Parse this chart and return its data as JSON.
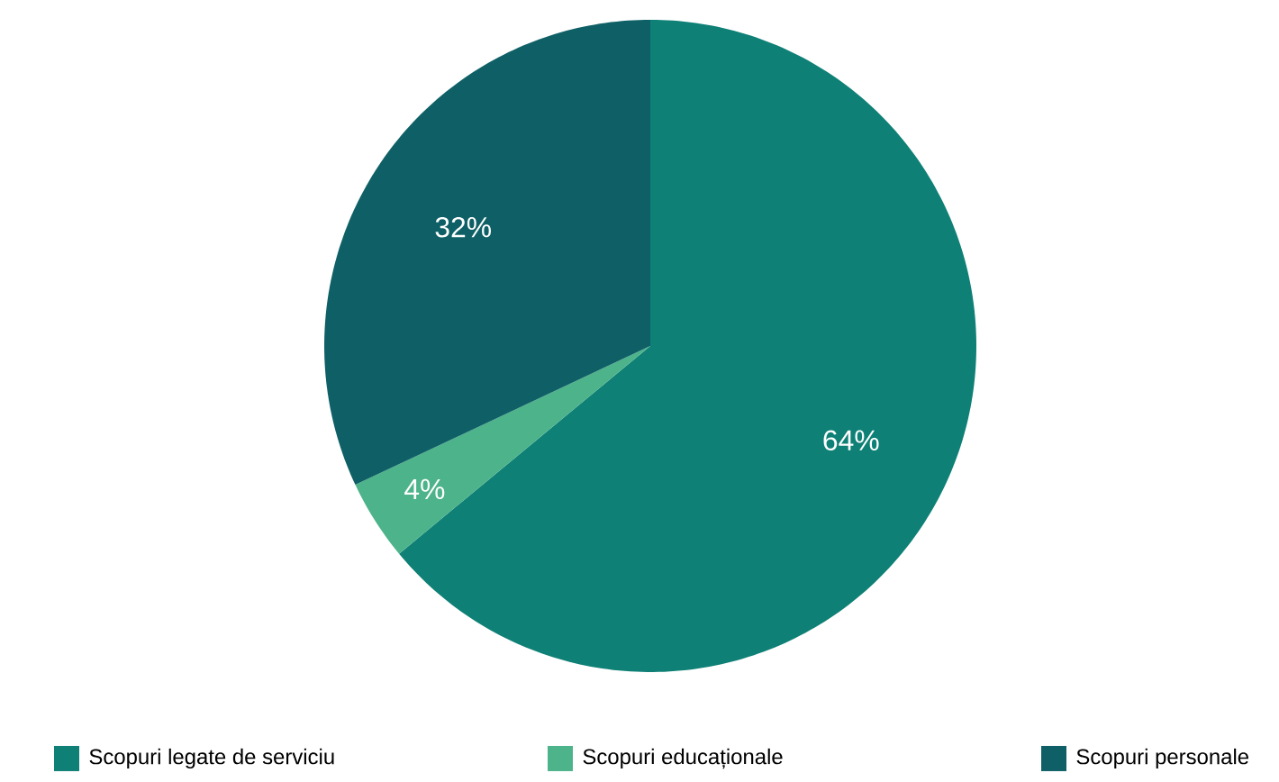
{
  "chart_data": {
    "type": "pie",
    "categories": [
      "Scopuri legate de serviciu",
      "Scopuri educaționale",
      "Scopuri personale"
    ],
    "values": [
      64,
      4,
      32
    ],
    "value_labels": [
      "64%",
      "4%",
      "32%"
    ],
    "colors": [
      "#0e8076",
      "#4db38a",
      "#0f6066"
    ],
    "legend": "bottom"
  }
}
